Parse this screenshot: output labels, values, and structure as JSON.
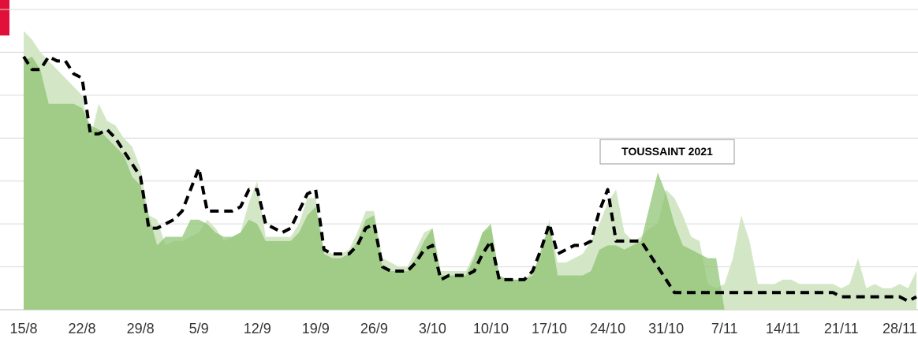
{
  "chart_data": {
    "type": "area",
    "annotation": "TOUSSAINT 2021",
    "categories": [
      "15/8",
      null,
      null,
      null,
      null,
      null,
      null,
      "22/8",
      null,
      null,
      null,
      null,
      null,
      null,
      "29/8",
      null,
      null,
      null,
      null,
      null,
      null,
      "5/9",
      null,
      null,
      null,
      null,
      null,
      null,
      "12/9",
      null,
      null,
      null,
      null,
      null,
      null,
      "19/9",
      null,
      null,
      null,
      null,
      null,
      null,
      "26/9",
      null,
      null,
      null,
      null,
      null,
      null,
      "3/10",
      null,
      null,
      null,
      null,
      null,
      null,
      "10/10",
      null,
      null,
      null,
      null,
      null,
      null,
      "17/10",
      null,
      null,
      null,
      null,
      null,
      null,
      "24/10",
      null,
      null,
      null,
      null,
      null,
      null,
      "31/10",
      null,
      null,
      null,
      null,
      null,
      null,
      "7/11",
      null,
      null,
      null,
      null,
      null,
      null,
      "14/11",
      null,
      null,
      null,
      null,
      null,
      null,
      "21/11",
      null,
      null,
      null,
      null,
      null,
      null,
      "28/11",
      null,
      null
    ],
    "series": [
      {
        "color": "#d3e7c6",
        "style": "area",
        "values": [
          6.5,
          6.3,
          6.0,
          5.8,
          5.6,
          5.4,
          5.2,
          5.0,
          4.0,
          4.8,
          4.4,
          4.3,
          4.0,
          3.8,
          3.3,
          2.2,
          2.1,
          1.5,
          1.6,
          1.6,
          1.7,
          1.8,
          2.1,
          1.9,
          1.6,
          1.7,
          1.8,
          2.5,
          3.0,
          1.7,
          1.7,
          1.7,
          1.7,
          2.0,
          2.6,
          2.6,
          1.4,
          1.3,
          1.3,
          1.4,
          1.8,
          2.3,
          2.3,
          1.2,
          1.1,
          1.0,
          1.0,
          1.4,
          1.8,
          1.9,
          0.9,
          0.9,
          0.9,
          0.9,
          1.3,
          1.8,
          1.9,
          0.8,
          0.7,
          0.7,
          0.7,
          0.9,
          1.2,
          2.1,
          1.1,
          1.1,
          1.2,
          1.3,
          1.6,
          2.0,
          2.5,
          2.8,
          1.8,
          1.6,
          1.7,
          1.9,
          2.0,
          2.8,
          2.6,
          2.2,
          1.7,
          1.6,
          0.6,
          0.5,
          0.6,
          1.2,
          2.2,
          1.6,
          0.6,
          0.6,
          0.6,
          0.7,
          0.7,
          0.6,
          0.6,
          0.6,
          0.6,
          0.6,
          0.5,
          0.6,
          1.2,
          0.5,
          0.6,
          0.5,
          0.5,
          0.6,
          0.5,
          0.9
        ]
      },
      {
        "color": "#8cc270",
        "style": "area",
        "values": [
          5.8,
          5.9,
          5.6,
          4.8,
          4.8,
          4.8,
          4.8,
          4.7,
          4.3,
          4.2,
          4.0,
          3.8,
          3.6,
          3.1,
          2.9,
          2.2,
          1.5,
          1.7,
          1.7,
          1.7,
          2.1,
          2.1,
          2.0,
          1.8,
          1.7,
          1.7,
          1.8,
          2.1,
          2.0,
          1.6,
          1.6,
          1.6,
          1.6,
          1.8,
          2.2,
          2.4,
          1.3,
          1.2,
          1.2,
          1.3,
          1.6,
          2.1,
          2.2,
          1.0,
          0.9,
          0.9,
          0.9,
          1.2,
          1.6,
          1.9,
          0.8,
          0.8,
          0.8,
          0.8,
          1.2,
          1.8,
          2.0,
          0.8,
          0.7,
          0.7,
          0.7,
          0.8,
          1.4,
          2.0,
          0.8,
          0.8,
          0.8,
          0.8,
          0.9,
          1.4,
          1.5,
          1.5,
          1.4,
          1.5,
          1.6,
          2.4,
          3.2,
          2.7,
          2.0,
          1.5,
          1.4,
          1.3,
          1.2,
          1.2,
          0,
          0,
          0,
          0,
          0,
          0,
          0,
          0,
          0,
          0,
          0,
          0,
          0,
          0,
          0,
          0,
          0,
          0,
          0,
          0,
          0,
          0,
          0,
          0
        ]
      },
      {
        "color": "#000000",
        "style": "dashed-line",
        "values": [
          5.9,
          5.6,
          5.6,
          5.9,
          5.8,
          5.8,
          5.5,
          5.4,
          4.1,
          4.1,
          4.2,
          4.0,
          3.7,
          3.4,
          3.1,
          1.9,
          1.9,
          2.0,
          2.1,
          2.3,
          2.8,
          3.3,
          2.3,
          2.3,
          2.3,
          2.3,
          2.4,
          2.8,
          2.8,
          2.0,
          1.9,
          1.8,
          1.9,
          2.3,
          2.7,
          2.8,
          1.4,
          1.3,
          1.3,
          1.3,
          1.5,
          1.9,
          2.0,
          1.0,
          0.9,
          0.9,
          0.9,
          1.1,
          1.4,
          1.5,
          0.7,
          0.8,
          0.8,
          0.8,
          0.9,
          1.3,
          1.6,
          0.7,
          0.7,
          0.7,
          0.7,
          0.9,
          1.4,
          2.0,
          1.3,
          1.4,
          1.5,
          1.5,
          1.6,
          2.3,
          2.8,
          1.6,
          1.6,
          1.6,
          1.6,
          1.3,
          1.0,
          0.7,
          0.4,
          0.4,
          0.4,
          0.4,
          0.4,
          0.4,
          0.4,
          0.4,
          0.4,
          0.4,
          0.4,
          0.4,
          0.4,
          0.4,
          0.4,
          0.4,
          0.4,
          0.4,
          0.4,
          0.4,
          0.3,
          0.3,
          0.3,
          0.3,
          0.3,
          0.3,
          0.3,
          0.3,
          0.2,
          0.3
        ]
      }
    ],
    "ylim": [
      0,
      7
    ],
    "yticks": [
      0,
      1,
      2,
      3,
      4,
      5,
      6,
      7
    ],
    "grid": true
  }
}
